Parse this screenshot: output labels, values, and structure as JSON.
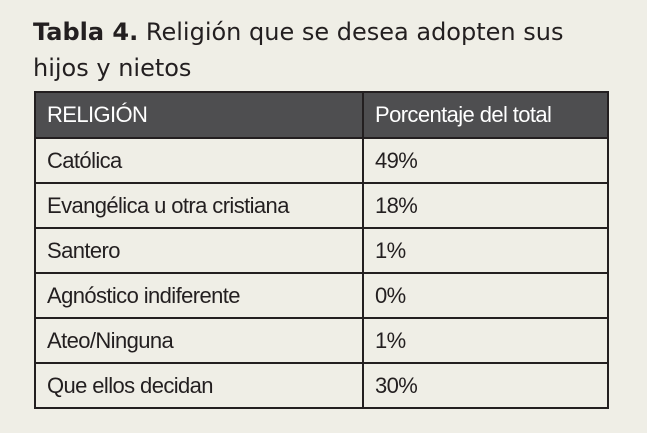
{
  "caption": {
    "number": "Tabla 4.",
    "title": "Religión que se desea adopten sus hijos y nietos"
  },
  "table": {
    "headers": [
      "RELIGIÓN",
      "Porcentaje del total"
    ],
    "rows": [
      [
        "Católica",
        "49%"
      ],
      [
        "Evangélica u otra cristiana",
        "18%"
      ],
      [
        "Santero",
        "1%"
      ],
      [
        "Agnóstico indiferente",
        "0%"
      ],
      [
        "Ateo/Ninguna",
        "1%"
      ],
      [
        "Que ellos decidan",
        "30%"
      ]
    ]
  },
  "colors": {
    "page_background": "#efeee6",
    "header_background": "#4e4e50",
    "header_text": "#ffffff",
    "border": "#231f20",
    "text": "#231f20"
  }
}
